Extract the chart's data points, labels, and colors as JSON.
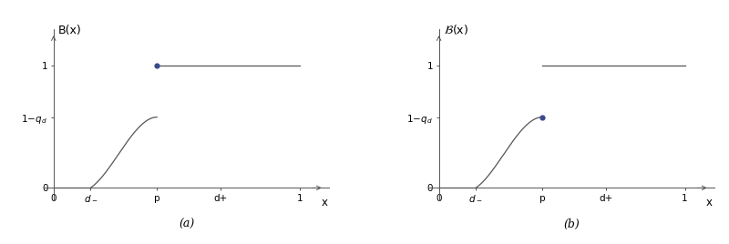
{
  "fig_width": 8.0,
  "fig_height": 2.68,
  "dpi": 100,
  "background_color": "#ffffff",
  "line_color": "#555555",
  "dot_color": "#3b4a8c",
  "d_minus": 0.15,
  "p_val": 0.42,
  "d_plus": 0.68,
  "one_minus_qd": 0.58,
  "subtitle_a": "(a)",
  "subtitle_b": "(b)",
  "ylabel_a": "B(x)",
  "ylabel_b": "$\\mathcal{B}$(x)",
  "xlabel": "x"
}
